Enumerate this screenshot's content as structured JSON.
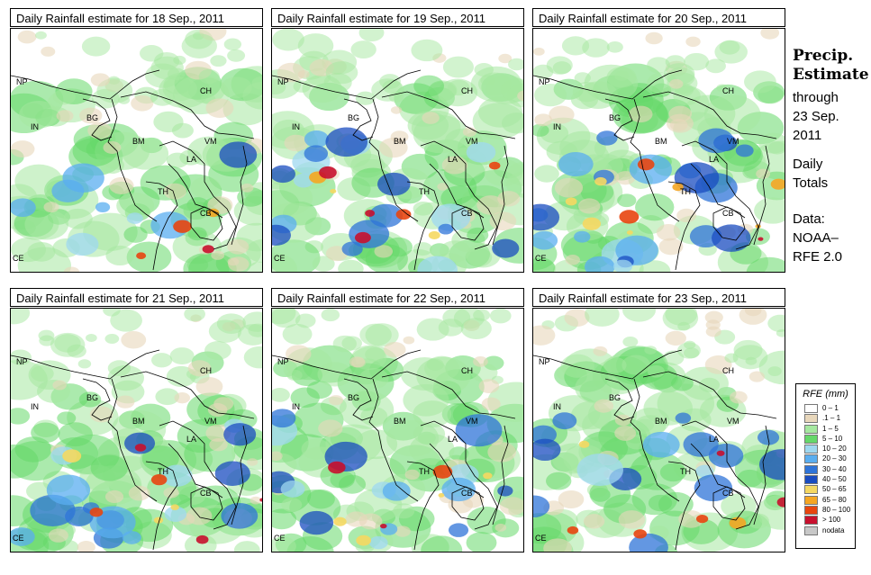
{
  "panels": [
    {
      "title": "Daily Rainfall estimate for  18 Sep., 2011",
      "intensity": 0.25
    },
    {
      "title": "Daily Rainfall estimate for  19 Sep., 2011",
      "intensity": 0.6
    },
    {
      "title": "Daily Rainfall estimate for  20 Sep., 2011",
      "intensity": 0.7
    },
    {
      "title": "Daily Rainfall estimate for  21 Sep., 2011",
      "intensity": 0.55
    },
    {
      "title": "Daily Rainfall estimate for  22 Sep., 2011",
      "intensity": 0.5
    },
    {
      "title": "Daily Rainfall estimate for  23 Sep., 2011",
      "intensity": 0.5
    }
  ],
  "country_labels": [
    "NP",
    "CH",
    "IN",
    "BG",
    "BM",
    "VM",
    "LA",
    "TH",
    "CB",
    "CE"
  ],
  "side": {
    "title_line1": "Precip.",
    "title_line2": "Estimate",
    "through": "through",
    "date_line1": "23 Sep.",
    "date_line2": "2011",
    "daily1": "Daily",
    "daily2": "Totals",
    "data1": "Data:",
    "data2": "NOAA–",
    "data3": "RFE 2.0"
  },
  "legend": {
    "title": "RFE (mm)",
    "items": [
      {
        "label": "0 – 1",
        "color": "#ffffff"
      },
      {
        "label": ".1 – 1",
        "color": "#e8d7bb"
      },
      {
        "label": "1 – 5",
        "color": "#a6e8a0"
      },
      {
        "label": "5 – 10",
        "color": "#66d86a"
      },
      {
        "label": "10 – 20",
        "color": "#9fd8f0"
      },
      {
        "label": "20 – 30",
        "color": "#5aaef0"
      },
      {
        "label": "30 – 40",
        "color": "#2f74d8"
      },
      {
        "label": "40 – 50",
        "color": "#1a4cc0"
      },
      {
        "label": "50 – 65",
        "color": "#f5d862"
      },
      {
        "label": "65 – 80",
        "color": "#f5a623"
      },
      {
        "label": "80 – 100",
        "color": "#e8450f"
      },
      {
        "label": "> 100",
        "color": "#c8102e"
      },
      {
        "label": "nodata",
        "color": "#c8c8c8"
      }
    ]
  }
}
